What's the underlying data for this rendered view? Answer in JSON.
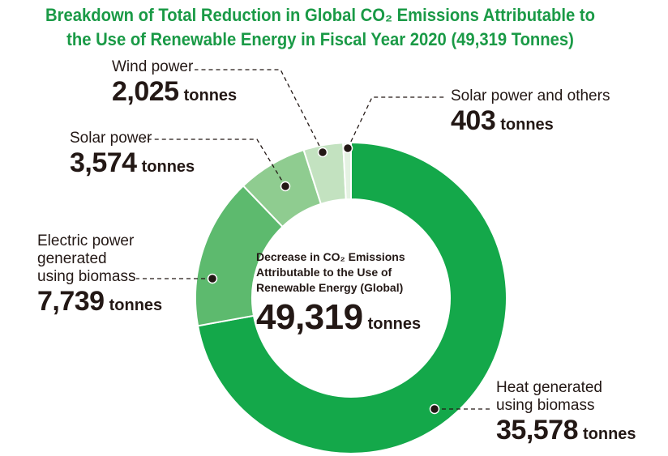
{
  "title": {
    "line1": "Breakdown of Total Reduction in Global CO₂ Emissions Attributable to",
    "line2": "the Use of Renewable Energy in Fiscal Year 2020 (49,319 Tonnes)"
  },
  "center": {
    "caption1": "Decrease in CO₂ Emissions",
    "caption2": "Attributable to the Use of",
    "caption3": "Renewable Energy (Global)",
    "total": "49,319",
    "unit": "tonnes"
  },
  "labels": {
    "wind": {
      "name": "Wind power",
      "value": "2,025",
      "unit": "tonnes"
    },
    "solar_others": {
      "name": "Solar power and others",
      "value": "403",
      "unit": "tonnes"
    },
    "solar": {
      "name": "Solar power",
      "value": "3,574",
      "unit": "tonnes"
    },
    "biomass_elec": {
      "name1": "Electric power",
      "name2": "generated",
      "name3": "using biomass",
      "value": "7,739",
      "unit": "tonnes"
    },
    "biomass_heat": {
      "name1": "Heat generated",
      "name2": "using biomass",
      "value": "35,578",
      "unit": "tonnes"
    }
  },
  "chart_data": {
    "type": "pie",
    "variant": "donut",
    "title": "Breakdown of Total Reduction in Global CO₂ Emissions Attributable to the Use of Renewable Energy in Fiscal Year 2020 (49,319 Tonnes)",
    "total": 49319,
    "unit": "tonnes",
    "slices": [
      {
        "label": "Heat generated using biomass",
        "value": 35578,
        "color": "#14a84a"
      },
      {
        "label": "Electric power generated using biomass",
        "value": 7739,
        "color": "#5dba6e"
      },
      {
        "label": "Solar power",
        "value": 3574,
        "color": "#8fcc90"
      },
      {
        "label": "Wind power",
        "value": 2025,
        "color": "#c3e2c0"
      },
      {
        "label": "Solar power and others",
        "value": 403,
        "color": "#e4f2e2"
      }
    ],
    "order": "clockwise-from-top"
  }
}
